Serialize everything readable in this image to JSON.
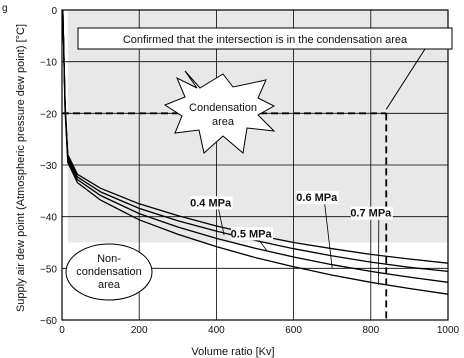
{
  "chart_data": {
    "type": "line",
    "title": "",
    "xlabel": "Volume ratio [Kv]",
    "ylabel": "Supply air dew point (Atmospheric pressure dew point) [°C]",
    "xlim": [
      0,
      1000
    ],
    "ylim": [
      -60,
      0
    ],
    "xticks": [
      0,
      200,
      400,
      600,
      800,
      1000
    ],
    "yticks": [
      0,
      -10,
      -20,
      -30,
      -40,
      -50,
      -60
    ],
    "grid": true,
    "legend": "none",
    "region_shaded": "above curves",
    "series": [
      {
        "name": "0.4 MPa",
        "label_pos": [
          385,
          -38
        ],
        "pointer_to": [
          420,
          -43.6
        ],
        "points": [
          [
            2,
            0
          ],
          [
            8,
            -18
          ],
          [
            15,
            -28
          ],
          [
            40,
            -31.8
          ],
          [
            100,
            -34.5
          ],
          [
            200,
            -37.5
          ],
          [
            300,
            -39.8
          ],
          [
            400,
            -41.8
          ],
          [
            500,
            -43.5
          ],
          [
            600,
            -45
          ],
          [
            700,
            -46.2
          ],
          [
            800,
            -47.3
          ],
          [
            900,
            -48.2
          ],
          [
            1000,
            -49
          ]
        ]
      },
      {
        "name": "0.5 MPa",
        "label_pos": [
          490,
          -44
        ],
        "pointer_to": [
          530,
          -46.5
        ],
        "points": [
          [
            2,
            0
          ],
          [
            8,
            -18.5
          ],
          [
            15,
            -28.5
          ],
          [
            40,
            -32.3
          ],
          [
            100,
            -35.2
          ],
          [
            200,
            -38.4
          ],
          [
            300,
            -40.8
          ],
          [
            400,
            -42.8
          ],
          [
            500,
            -44.6
          ],
          [
            600,
            -46.2
          ],
          [
            700,
            -47.6
          ],
          [
            800,
            -48.8
          ],
          [
            900,
            -49.8
          ],
          [
            1000,
            -50.6
          ]
        ]
      },
      {
        "name": "0.6 MPa",
        "label_pos": [
          660,
          -37
        ],
        "pointer_to": [
          700,
          -50
        ],
        "points": [
          [
            2,
            0
          ],
          [
            8,
            -19
          ],
          [
            15,
            -29
          ],
          [
            40,
            -32.8
          ],
          [
            100,
            -35.9
          ],
          [
            200,
            -39.4
          ],
          [
            300,
            -42
          ],
          [
            400,
            -44.2
          ],
          [
            500,
            -46.1
          ],
          [
            600,
            -47.8
          ],
          [
            700,
            -49.3
          ],
          [
            800,
            -50.6
          ],
          [
            900,
            -51.7
          ],
          [
            1000,
            -52.7
          ]
        ]
      },
      {
        "name": "0.7 MPa",
        "label_pos": [
          800,
          -40
        ],
        "pointer_to": [
          820,
          -53.2
        ],
        "points": [
          [
            2,
            0
          ],
          [
            8,
            -19.5
          ],
          [
            15,
            -29.5
          ],
          [
            40,
            -33.4
          ],
          [
            100,
            -36.8
          ],
          [
            200,
            -40.6
          ],
          [
            300,
            -43.4
          ],
          [
            400,
            -45.8
          ],
          [
            500,
            -47.9
          ],
          [
            600,
            -49.7
          ],
          [
            700,
            -51.3
          ],
          [
            800,
            -52.7
          ],
          [
            900,
            -53.9
          ],
          [
            1000,
            -55
          ]
        ]
      }
    ],
    "annotations": {
      "confirmed_note": "Confirmed that the intersection is in the condensation area",
      "condensation_lines": [
        "Condensation",
        "area"
      ],
      "non_condensation_lines": [
        "Non-",
        "condensation",
        "area"
      ],
      "intersection": {
        "x": 840,
        "y": -20
      }
    }
  }
}
